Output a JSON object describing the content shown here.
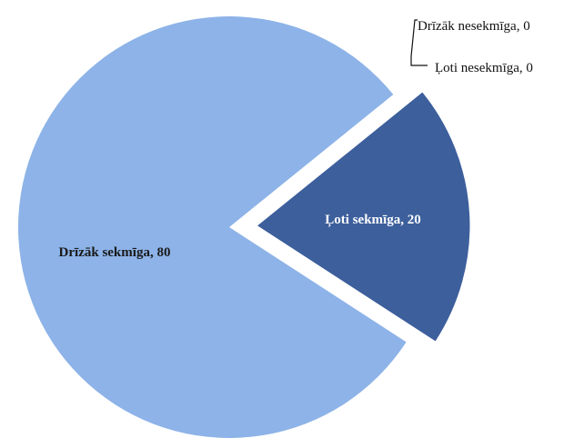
{
  "chart_data": {
    "type": "pie",
    "slices": [
      {
        "label": "Ļoti sekmīga",
        "value": 20,
        "display": "Ļoti sekmīga, 20",
        "color": "#3d5f9c",
        "exploded": true
      },
      {
        "label": "Drīzāk sekmīga",
        "value": 80,
        "display": "Drīzāk sekmīga, 80",
        "color": "#8db3e8",
        "exploded": false
      },
      {
        "label": "Drīzāk nesekmīga",
        "value": 0,
        "display": "Drīzāk nesekmīga, 0",
        "color": "#1f3a66",
        "exploded": false
      },
      {
        "label": "Ļoti nesekmīga",
        "value": 0,
        "display": "Ļoti nesekmīga, 0",
        "color": "#1f3a66",
        "exploded": false
      }
    ],
    "legend": "none",
    "data_labels": "category and value"
  }
}
